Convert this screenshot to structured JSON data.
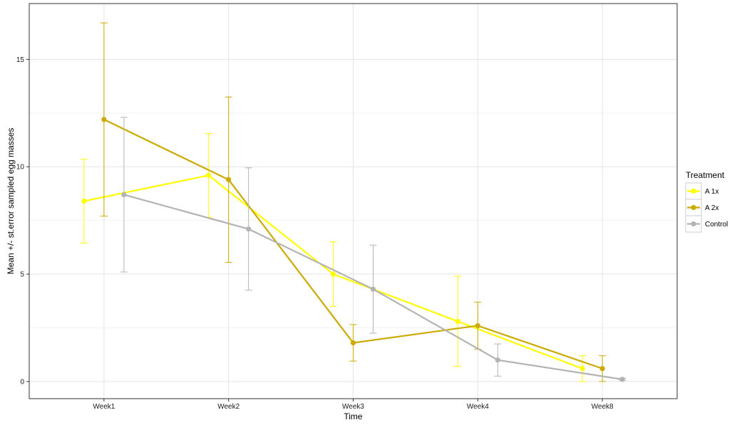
{
  "chart_data": {
    "type": "line",
    "categories": [
      "Week1",
      "Week2",
      "Week3",
      "Week4",
      "Week8"
    ],
    "xlabel": "Time",
    "ylabel": "Mean +/- st.error sampled egg masses",
    "ylim": [
      -0.8,
      17.6
    ],
    "yticks": [
      0,
      5,
      10,
      15
    ],
    "grid": true,
    "legend_position": "right",
    "legend_title": "Treatment",
    "series": [
      {
        "name": "A 1x",
        "color": "#ffff00",
        "values": [
          8.4,
          9.6,
          5.0,
          2.8,
          0.6
        ],
        "lower": [
          6.45,
          7.65,
          3.5,
          0.7,
          0.0
        ],
        "upper": [
          10.35,
          11.55,
          6.5,
          4.9,
          1.2
        ]
      },
      {
        "name": "A 2x",
        "color": "#ccaa00",
        "values": [
          12.2,
          9.4,
          1.8,
          2.6,
          0.6
        ],
        "lower": [
          7.7,
          5.55,
          0.95,
          1.5,
          0.0
        ],
        "upper": [
          16.7,
          13.25,
          2.65,
          3.7,
          1.2
        ]
      },
      {
        "name": "Control",
        "color": "#b3b3b3",
        "values": [
          8.7,
          7.1,
          4.3,
          1.0,
          0.1
        ],
        "lower": [
          5.1,
          4.25,
          2.25,
          0.25,
          0.05
        ],
        "upper": [
          12.3,
          9.95,
          6.35,
          1.75,
          0.15
        ]
      }
    ]
  }
}
